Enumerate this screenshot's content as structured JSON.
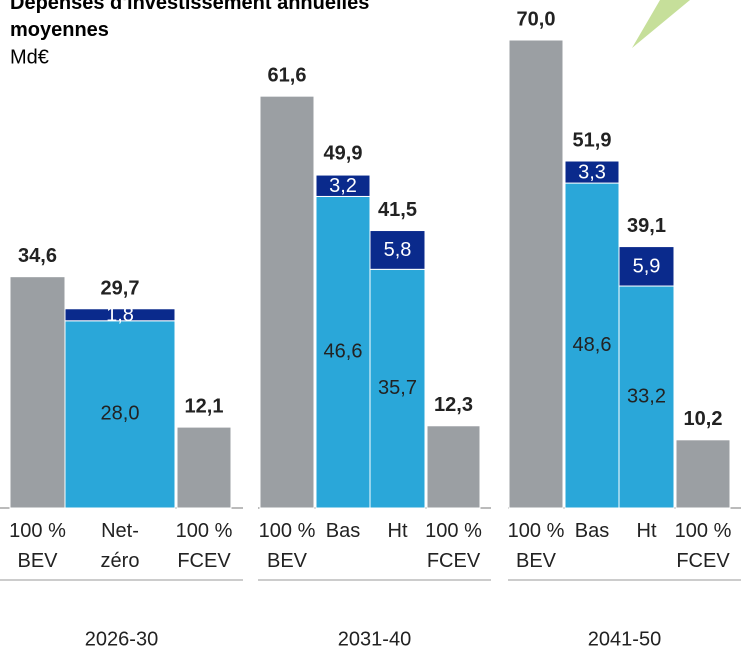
{
  "chart_data": {
    "type": "stacked-bar",
    "title": "Dépenses d'investissement annuelles moyennes",
    "subtitle": "Md€",
    "categories": [
      "100 % BEV",
      "Net-zéro",
      "100 % FCEV",
      "100 % BEV",
      "Bas",
      "Ht",
      "100 % FCEV",
      "100 % BEV",
      "Bas",
      "Ht",
      "100 % FCEV"
    ],
    "group_labels": [
      "2026-30",
      "2031-40",
      "2041-50"
    ],
    "ylim": [
      0,
      70
    ],
    "series": [
      {
        "colors": [
          "#9b9fa3",
          "#2aa7d9",
          "#9b9fa3",
          "#9b9fa3",
          "#2aa7d9",
          "#2aa7d9",
          "#9b9fa3",
          "#9b9fa3",
          "#2aa7d9",
          "#2aa7d9",
          "#9b9fa3"
        ],
        "values": [
          34.6,
          28.0,
          12.1,
          61.6,
          46.6,
          35.7,
          12.3,
          70.0,
          48.6,
          33.2,
          10.2
        ],
        "value_labels": [
          "34,6",
          "28,0",
          "12,1",
          "61,6",
          "46,6",
          "35,7",
          "12,3",
          "70,0",
          "48,6",
          "33,2",
          "10,2"
        ]
      },
      {
        "color": "#0a2a8c",
        "values": [
          null,
          1.8,
          null,
          null,
          3.2,
          5.8,
          null,
          null,
          3.3,
          5.9,
          null
        ],
        "value_labels": [
          null,
          "1,8",
          null,
          null,
          "3,2",
          "5,8",
          null,
          null,
          "3,3",
          "5,9",
          null
        ]
      }
    ],
    "totals": [
      null,
      29.7,
      null,
      null,
      49.9,
      41.5,
      null,
      null,
      51.9,
      39.1,
      null
    ],
    "total_labels": [
      null,
      "29,7",
      null,
      null,
      "49,9",
      "41,5",
      null,
      null,
      "51,9",
      "39,1",
      null
    ]
  }
}
